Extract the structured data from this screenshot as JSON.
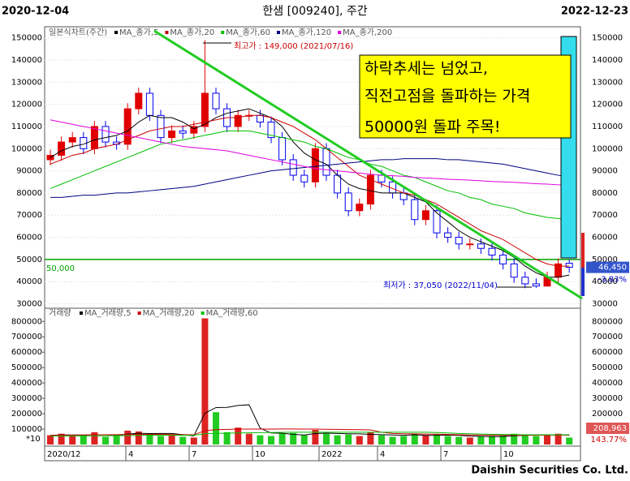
{
  "header": {
    "start_date": "2020-12-04",
    "title": "한샘 [009240], 주간",
    "end_date": "2022-12-23"
  },
  "footer": "Daishin Securities Co. Ltd.",
  "chart_data": {
    "type": "candlestick",
    "legend_title": "일본식차트(주간)",
    "ylim": [
      28000,
      155000
    ],
    "yticks": [
      30000,
      40000,
      50000,
      60000,
      70000,
      80000,
      90000,
      100000,
      110000,
      120000,
      130000,
      140000,
      150000
    ],
    "open": [
      95000,
      97000,
      103000,
      105000,
      100000,
      110000,
      103000,
      102000,
      118000,
      125000,
      115000,
      105000,
      108000,
      107000,
      110000,
      125000,
      118000,
      110000,
      115000,
      115000,
      112000,
      105000,
      95000,
      88000,
      85000,
      100000,
      88000,
      80000,
      72000,
      75000,
      88000,
      85000,
      80000,
      77000,
      68000,
      72000,
      62000,
      60000,
      57000,
      57000,
      55000,
      52000,
      48000,
      42000,
      39000,
      38000,
      42000,
      48300
    ],
    "high": [
      99500,
      105500,
      107500,
      107500,
      112500,
      112500,
      105500,
      120500,
      127500,
      127500,
      117500,
      110500,
      110500,
      112500,
      149000,
      127500,
      120500,
      117500,
      117500,
      117500,
      114500,
      107500,
      97500,
      90500,
      102500,
      102500,
      90500,
      82500,
      77500,
      90500,
      90500,
      87500,
      82500,
      79500,
      74500,
      74500,
      64500,
      62500,
      59500,
      59500,
      57500,
      54500,
      50500,
      44500,
      41500,
      44500,
      50500,
      50000
    ],
    "low": [
      92500,
      94500,
      100500,
      97500,
      97500,
      100500,
      99500,
      99500,
      115500,
      112500,
      102500,
      102500,
      104500,
      104500,
      107500,
      115500,
      107500,
      107500,
      112500,
      109500,
      102500,
      92500,
      85500,
      82500,
      82500,
      85500,
      77500,
      69500,
      69500,
      72500,
      82500,
      77500,
      74500,
      65500,
      65500,
      59500,
      57500,
      54500,
      54500,
      52500,
      49500,
      45500,
      39500,
      37050,
      37200,
      37800,
      39500,
      44000
    ],
    "close": [
      97000,
      103000,
      105000,
      100000,
      110000,
      103000,
      102000,
      118000,
      125000,
      115000,
      105000,
      108000,
      107000,
      110000,
      125000,
      118000,
      110000,
      115000,
      115000,
      112000,
      105000,
      95000,
      88000,
      85000,
      100000,
      88000,
      80000,
      72000,
      75000,
      88000,
      85000,
      80000,
      77000,
      68000,
      72000,
      62000,
      60000,
      57000,
      57000,
      55000,
      52000,
      48000,
      42000,
      39000,
      38000,
      42000,
      48000,
      46450
    ],
    "up_color": "#e00000",
    "down_color": "#0000ee",
    "series": [
      {
        "name": "MA_종가,5",
        "color": "#000000",
        "values": [
          96000,
          99000,
          101000,
          102000,
          104000,
          105000,
          106000,
          108000,
          112000,
          115000,
          114000,
          114000,
          112000,
          109000,
          111000,
          114000,
          116000,
          117000,
          118000,
          116000,
          114000,
          110000,
          103000,
          98000,
          95000,
          93000,
          88000,
          84000,
          82000,
          81000,
          80000,
          80000,
          80000,
          78000,
          76000,
          71000,
          67000,
          63000,
          60000,
          58000,
          56000,
          54000,
          51000,
          47000,
          44000,
          42000,
          42000,
          43000
        ]
      },
      {
        "name": "MA_종가,20",
        "color": "#cc0000",
        "values": [
          93000,
          95000,
          97000,
          98000,
          100000,
          101000,
          102000,
          104000,
          106000,
          108000,
          109000,
          110000,
          110000,
          111000,
          112000,
          113000,
          114000,
          114000,
          115000,
          115000,
          114000,
          112000,
          110000,
          107000,
          104000,
          100000,
          96000,
          92000,
          88000,
          86000,
          84000,
          82000,
          80000,
          79000,
          77000,
          75000,
          72000,
          69000,
          66000,
          63000,
          61000,
          59000,
          56000,
          53000,
          50000,
          48000,
          47000,
          47000
        ]
      },
      {
        "name": "MA_종가,60",
        "color": "#00c000",
        "values": [
          82000,
          84000,
          86000,
          88000,
          90000,
          92000,
          94000,
          96000,
          98000,
          100000,
          102000,
          103000,
          104000,
          105000,
          106000,
          107000,
          108000,
          108000,
          108000,
          107000,
          106000,
          105000,
          104000,
          103000,
          101000,
          100000,
          98000,
          96000,
          95000,
          93000,
          92000,
          90000,
          88000,
          87000,
          85000,
          83000,
          81000,
          80000,
          78000,
          77000,
          75000,
          74000,
          73000,
          71000,
          70000,
          69000,
          68500,
          68000
        ]
      },
      {
        "name": "MA_종가,120",
        "color": "#000080",
        "values": [
          78000,
          78000,
          78500,
          79000,
          79000,
          79500,
          80000,
          80000,
          80500,
          81000,
          81500,
          82000,
          82500,
          83000,
          84000,
          85000,
          86000,
          87000,
          88000,
          89000,
          90000,
          90500,
          91000,
          91500,
          92000,
          92500,
          93000,
          93500,
          94000,
          94500,
          95000,
          95000,
          95500,
          95500,
          95500,
          95500,
          95000,
          95000,
          94500,
          94000,
          93500,
          93000,
          92000,
          91000,
          90000,
          89000,
          88000,
          87000
        ]
      },
      {
        "name": "MA_종가,200",
        "color": "#e000e0",
        "values": [
          113000,
          112000,
          111000,
          110000,
          109000,
          108000,
          107000,
          106000,
          105000,
          104000,
          103000,
          102000,
          101000,
          100500,
          100000,
          99500,
          99000,
          98000,
          97000,
          96000,
          95000,
          94000,
          93000,
          92000,
          91000,
          90500,
          90000,
          89500,
          89000,
          88500,
          88000,
          87800,
          87500,
          87000,
          86800,
          86500,
          86200,
          86000,
          85800,
          85500,
          85200,
          85000,
          84800,
          84500,
          84200,
          84000,
          83700,
          83500
        ]
      }
    ],
    "reference_line": {
      "value": 50000,
      "label": "50,000",
      "color": "#00a000"
    },
    "high_note": "최고가 : 149,000 (2021/07/16)",
    "low_note": "최저가 : 37,050 (2022/11/04)",
    "callout": [
      "하락추세는 넘었고,",
      "직전고점을 돌파하는 가격",
      "50000원 돌파 주목!"
    ],
    "last_price": {
      "value": 46450,
      "label": "46,450"
    },
    "last_change": "-3.83%",
    "date_labels": [
      "2020/12",
      "4",
      "7",
      "10",
      "2022",
      "4",
      "7",
      "10"
    ]
  },
  "volume_chart": {
    "type": "bar",
    "title": "거래량",
    "ylim": [
      0,
      870000
    ],
    "yticks": [
      100000,
      200000,
      300000,
      400000,
      500000,
      600000,
      700000,
      800000
    ],
    "values": [
      60000,
      70000,
      55000,
      60000,
      80000,
      50000,
      60000,
      90000,
      85000,
      70000,
      55000,
      60000,
      50000,
      45000,
      820000,
      210000,
      80000,
      110000,
      70000,
      60000,
      55000,
      70000,
      75000,
      60000,
      95000,
      70000,
      60000,
      65000,
      55000,
      80000,
      60000,
      50000,
      55000,
      70000,
      60000,
      65000,
      55000,
      50000,
      45000,
      50000,
      55000,
      60000,
      70000,
      65000,
      55000,
      60000,
      70000,
      45000
    ],
    "series": [
      {
        "name": "MA_거래량,5",
        "color": "#000000",
        "values": [
          60000,
          62000,
          62000,
          61000,
          63000,
          63000,
          60000,
          68000,
          73000,
          71000,
          72000,
          72000,
          64000,
          56000,
          204000,
          240000,
          241000,
          254000,
          258000,
          106000,
          75000,
          73000,
          66000,
          62000,
          71000,
          74000,
          72000,
          70000,
          69000,
          66000,
          64000,
          62000,
          60000,
          63000,
          59000,
          60000,
          61000,
          60000,
          55000,
          53000,
          51000,
          52000,
          56000,
          60000,
          61000,
          62000,
          64000,
          60000
        ]
      },
      {
        "name": "MA_거래량,20",
        "color": "#cc0000",
        "values": [
          60000,
          61000,
          61000,
          62000,
          63000,
          63000,
          64000,
          65000,
          66000,
          66000,
          66000,
          65000,
          64000,
          63000,
          90000,
          96000,
          98000,
          100000,
          100000,
          100000,
          100000,
          101000,
          101000,
          100000,
          100000,
          99000,
          98000,
          97000,
          96000,
          95000,
          80000,
          72000,
          70000,
          69000,
          68000,
          67000,
          65000,
          63000,
          62000,
          61000,
          60000,
          59000,
          59000,
          60000,
          60000,
          61000,
          61000,
          61000
        ]
      },
      {
        "name": "MA_거래량,60",
        "color": "#00c000",
        "values": [
          55000,
          55000,
          56000,
          56000,
          57000,
          57000,
          58000,
          58000,
          59000,
          59000,
          60000,
          60000,
          60000,
          60000,
          70000,
          72000,
          74000,
          75000,
          76000,
          77000,
          78000,
          79000,
          80000,
          80000,
          80000,
          80000,
          80000,
          80000,
          80000,
          80000,
          80000,
          80000,
          80000,
          80000,
          80000,
          78000,
          75000,
          72000,
          70000,
          68000,
          66000,
          65000,
          64000,
          63000,
          63000,
          63000,
          63000,
          63000
        ]
      }
    ],
    "last_volume": "208,963",
    "last_volume_ratio": "143.77%",
    "scale_note": "*10"
  }
}
